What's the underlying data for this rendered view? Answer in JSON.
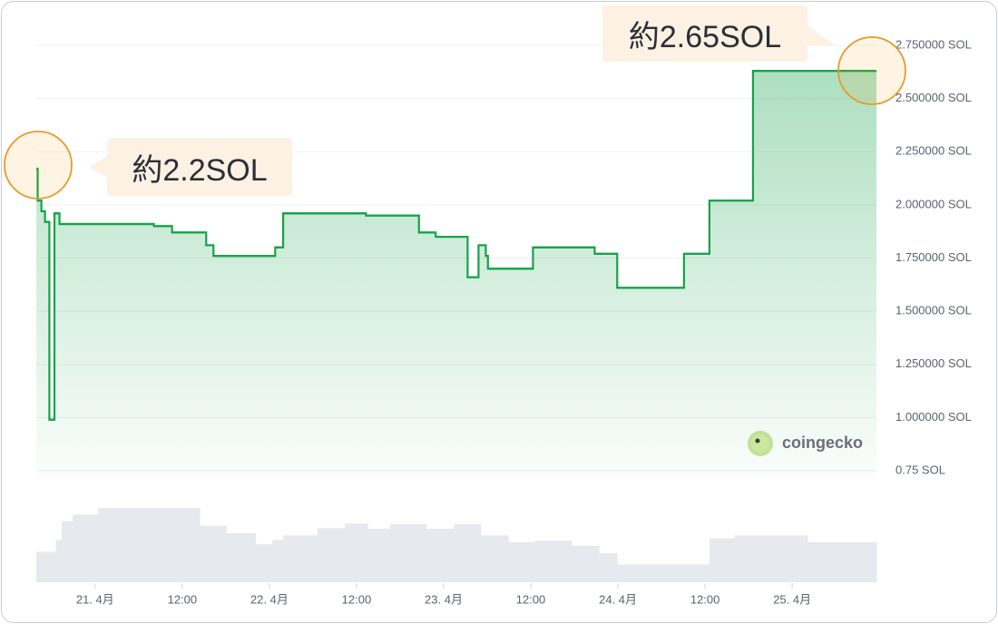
{
  "chart_data": {
    "type": "step-area",
    "color": "#16a34a",
    "grid": true,
    "x": [
      -8.1,
      -7.9,
      -7.4,
      -6.9,
      -6.3,
      -5.6,
      -4.9,
      8.1,
      10.6,
      15.3,
      16.3,
      24.8,
      25.9,
      37.3,
      44.6,
      46.9,
      51.3,
      52.8,
      53.8,
      54.1,
      60.3,
      68.8,
      71.9,
      81.1,
      84.6,
      90.6
    ],
    "values": [
      2.17,
      2.02,
      1.97,
      1.92,
      0.99,
      1.96,
      1.91,
      1.9,
      1.87,
      1.81,
      1.76,
      1.8,
      1.96,
      1.95,
      1.87,
      1.85,
      1.66,
      1.81,
      1.76,
      1.7,
      1.8,
      1.77,
      1.61,
      1.77,
      2.02,
      2.63
    ],
    "xlim": [
      -8.1,
      107.6
    ],
    "ylim": [
      0.75,
      2.75
    ],
    "yticks": [
      {
        "value": 0.75,
        "label": "0.75 SOL"
      },
      {
        "value": 1.0,
        "label": "1.000000 SOL"
      },
      {
        "value": 1.25,
        "label": "1.250000 SOL"
      },
      {
        "value": 1.5,
        "label": "1.500000 SOL"
      },
      {
        "value": 1.75,
        "label": "1.750000 SOL"
      },
      {
        "value": 2.0,
        "label": "2.000000 SOL"
      },
      {
        "value": 2.25,
        "label": "2.250000 SOL"
      },
      {
        "value": 2.5,
        "label": "2.500000 SOL"
      },
      {
        "value": 2.75,
        "label": "2.750000 SOL"
      }
    ],
    "xticks": [
      {
        "value": 0,
        "label": "21. 4月"
      },
      {
        "value": 12,
        "label": "12:00"
      },
      {
        "value": 24,
        "label": "22. 4月"
      },
      {
        "value": 36,
        "label": "12:00"
      },
      {
        "value": 48,
        "label": "23. 4月"
      },
      {
        "value": 60,
        "label": "12:00"
      },
      {
        "value": 72,
        "label": "24. 4月"
      },
      {
        "value": 84,
        "label": "12:00"
      },
      {
        "value": 96,
        "label": "25. 4月"
      }
    ],
    "volume": {
      "color": "#e6e9ed",
      "ylim": [
        0,
        100
      ],
      "x": [
        -8.1,
        -5.4,
        -4.6,
        -3.1,
        0.4,
        14.4,
        18.1,
        22.1,
        24.4,
        25.9,
        30.6,
        34.4,
        37.5,
        40.6,
        45.6,
        49.4,
        53.1,
        56.9,
        60.6,
        65.6,
        69.4,
        71.9,
        74.4,
        81.1,
        84.6,
        88.1,
        98.1
      ],
      "values": [
        41,
        57,
        82,
        91,
        100,
        76,
        66,
        51,
        57,
        63,
        73,
        79,
        72,
        78,
        72,
        78,
        63,
        54,
        56,
        49,
        39,
        24,
        24,
        24,
        59,
        63,
        54
      ]
    },
    "annotations": [
      "約2.2SOL",
      "約2.65SOL"
    ]
  },
  "watermark": "coingecko"
}
